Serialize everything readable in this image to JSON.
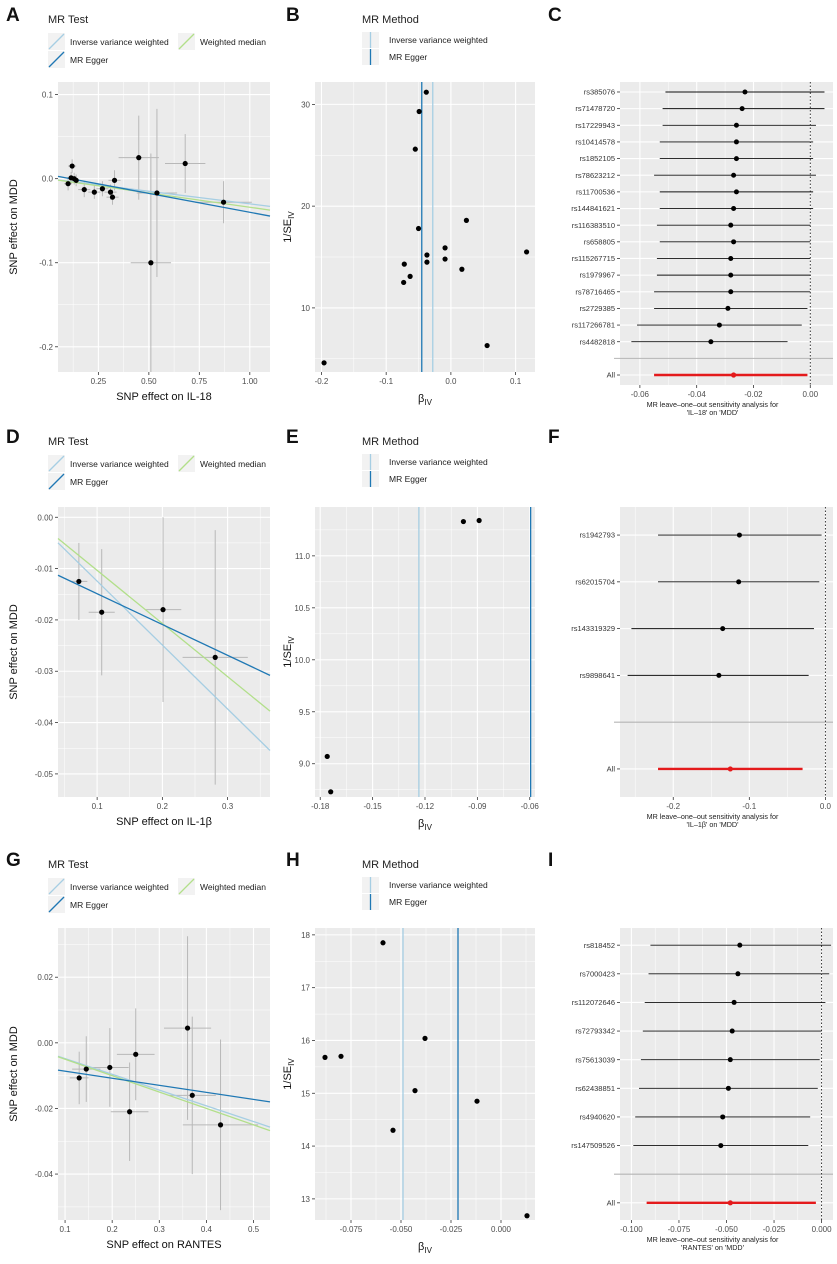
{
  "rows": [
    {
      "scatter": {
        "panel_label": "A",
        "legend_title": "MR Test",
        "legend_items": [
          "Inverse variance weighted",
          "Weighted median",
          "MR Egger"
        ],
        "xlabel": "SNP effect on IL-18",
        "ylabel": "SNP effect on MDD",
        "xlim": [
          0.05,
          1.1
        ],
        "ylim": [
          -0.23,
          0.115
        ],
        "xticks": [
          0.25,
          0.5,
          0.75,
          1.0
        ],
        "xtick_labels": [
          "0.25",
          "0.50",
          "0.75",
          "1.00"
        ],
        "yticks": [
          -0.2,
          -0.1,
          0.0,
          0.1
        ],
        "ytick_labels": [
          "-0.2",
          "-0.1",
          "0.0",
          "0.1"
        ],
        "points": [
          {
            "x": 0.1,
            "y": -0.006,
            "xe": 0.02,
            "ye": 0.008
          },
          {
            "x": 0.115,
            "y": 0.001,
            "xe": 0.02,
            "ye": 0.007
          },
          {
            "x": 0.12,
            "y": 0.015,
            "xe": 0.02,
            "ye": 0.008
          },
          {
            "x": 0.13,
            "y": 0.0,
            "xe": 0.02,
            "ye": 0.007
          },
          {
            "x": 0.14,
            "y": -0.002,
            "xe": 0.02,
            "ye": 0.007
          },
          {
            "x": 0.18,
            "y": -0.013,
            "xe": 0.03,
            "ye": 0.009
          },
          {
            "x": 0.23,
            "y": -0.016,
            "xe": 0.03,
            "ye": 0.008
          },
          {
            "x": 0.27,
            "y": -0.012,
            "xe": 0.03,
            "ye": 0.009
          },
          {
            "x": 0.31,
            "y": -0.016,
            "xe": 0.03,
            "ye": 0.009
          },
          {
            "x": 0.32,
            "y": -0.022,
            "xe": 0.03,
            "ye": 0.009
          },
          {
            "x": 0.33,
            "y": -0.002,
            "xe": 0.03,
            "ye": 0.012
          },
          {
            "x": 0.45,
            "y": 0.025,
            "xe": 0.1,
            "ye": 0.05
          },
          {
            "x": 0.51,
            "y": -0.1,
            "xe": 0.1,
            "ye": 0.13
          },
          {
            "x": 0.54,
            "y": -0.017,
            "xe": 0.1,
            "ye": 0.1
          },
          {
            "x": 0.68,
            "y": 0.018,
            "xe": 0.1,
            "ye": 0.035
          },
          {
            "x": 0.87,
            "y": -0.028,
            "xe": 0.14,
            "ye": 0.025
          }
        ],
        "lines": [
          {
            "name": "Inverse variance weighted",
            "slope": -0.03,
            "intercept": 0,
            "color": "#a6cee3"
          },
          {
            "name": "Weighted median",
            "slope": -0.034,
            "intercept": 0,
            "color": "#b2df8a"
          },
          {
            "name": "MR Egger",
            "slope": -0.045,
            "intercept": 0.005,
            "color": "#1f78b4"
          }
        ]
      },
      "funnel": {
        "panel_label": "B",
        "legend_title": "MR Method",
        "legend_items": [
          "Inverse variance weighted",
          "MR Egger"
        ],
        "xlabel": "βIV",
        "xlabel_main": "β",
        "xlabel_sub": "IV",
        "ylabel": "1/SEIV",
        "ylabel_main": "1/SE",
        "ylabel_sub": "IV",
        "xlim": [
          -0.21,
          0.13
        ],
        "ylim": [
          3.7,
          32.2
        ],
        "xticks": [
          -0.2,
          -0.1,
          0.0,
          0.1
        ],
        "xtick_labels": [
          "-0.2",
          "-0.1",
          "0.0",
          "0.1"
        ],
        "yticks": [
          10,
          20,
          30
        ],
        "ytick_labels": [
          "10",
          "20",
          "30"
        ],
        "points": [
          [
            -0.196,
            4.6
          ],
          [
            -0.073,
            12.5
          ],
          [
            -0.072,
            14.3
          ],
          [
            -0.063,
            13.1
          ],
          [
            -0.055,
            25.6
          ],
          [
            -0.05,
            17.8
          ],
          [
            -0.049,
            29.3
          ],
          [
            -0.037,
            14.5
          ],
          [
            -0.037,
            15.2
          ],
          [
            -0.038,
            31.2
          ],
          [
            -0.009,
            15.9
          ],
          [
            -0.009,
            14.8
          ],
          [
            0.017,
            13.8
          ],
          [
            0.024,
            18.6
          ],
          [
            0.056,
            6.3
          ],
          [
            0.117,
            15.5
          ]
        ],
        "ivw": -0.028,
        "egger": -0.045
      },
      "loo": {
        "panel_label": "C",
        "snps": [
          "rs385076",
          "rs71478720",
          "rs17229943",
          "rs10414578",
          "rs1852105",
          "rs78623212",
          "rs11700536",
          "rs144841621",
          "rs116383510",
          "rs658805",
          "rs115267715",
          "rs1979967",
          "rs78716465",
          "rs2729385",
          "rs117266781",
          "rs4482818"
        ],
        "est": [
          -0.023,
          -0.024,
          -0.026,
          -0.026,
          -0.026,
          -0.027,
          -0.026,
          -0.027,
          -0.028,
          -0.027,
          -0.028,
          -0.028,
          -0.028,
          -0.029,
          -0.032,
          -0.035
        ],
        "lo": [
          -0.051,
          -0.052,
          -0.052,
          -0.053,
          -0.053,
          -0.055,
          -0.053,
          -0.053,
          -0.054,
          -0.053,
          -0.054,
          -0.054,
          -0.055,
          -0.055,
          -0.061,
          -0.063
        ],
        "hi": [
          0.005,
          0.005,
          0.002,
          0.001,
          0.001,
          0.002,
          0.001,
          0.001,
          0.0,
          0.0,
          0.0,
          0.0,
          0.0,
          -0.001,
          -0.003,
          -0.008
        ],
        "all_label": "All",
        "all": {
          "est": -0.027,
          "lo": -0.055,
          "hi": -0.001
        },
        "xlim": [
          -0.067,
          0.008
        ],
        "xticks": [
          -0.06,
          -0.04,
          -0.02,
          0.0
        ],
        "xtick_labels": [
          "-0.06",
          "-0.04",
          "-0.02",
          "0.00"
        ],
        "caption1": "MR leave–one–out sensitivity analysis for",
        "caption2": "'IL–18' on 'MDD'"
      }
    },
    {
      "scatter": {
        "panel_label": "D",
        "legend_title": "MR Test",
        "legend_items": [
          "Inverse variance weighted",
          "Weighted median",
          "MR Egger"
        ],
        "xlabel": "SNP effect on IL-1β",
        "ylabel": "SNP effect on MDD",
        "xlim": [
          0.04,
          0.365
        ],
        "ylim": [
          -0.0545,
          0.002
        ],
        "xticks": [
          0.1,
          0.2,
          0.3
        ],
        "xtick_labels": [
          "0.1",
          "0.2",
          "0.3"
        ],
        "yticks": [
          -0.05,
          -0.04,
          -0.03,
          -0.02,
          -0.01,
          0.0
        ],
        "ytick_labels": [
          "-0.05",
          "-0.04",
          "-0.03",
          "-0.02",
          "-0.01",
          "0.00"
        ],
        "points": [
          {
            "x": 0.072,
            "y": -0.0125,
            "xe": 0.013,
            "ye": 0.0075
          },
          {
            "x": 0.107,
            "y": -0.0185,
            "xe": 0.02,
            "ye": 0.0123
          },
          {
            "x": 0.201,
            "y": -0.018,
            "xe": 0.028,
            "ye": 0.018
          },
          {
            "x": 0.281,
            "y": -0.0273,
            "xe": 0.05,
            "ye": 0.0248
          }
        ],
        "lines": [
          {
            "name": "Inverse variance weighted",
            "slope": -0.1245,
            "intercept": 0,
            "color": "#a6cee3"
          },
          {
            "name": "Weighted median",
            "slope": -0.1035,
            "intercept": 0,
            "color": "#b2df8a"
          },
          {
            "name": "MR Egger",
            "slope": -0.06,
            "intercept": -0.0089,
            "color": "#1f78b4"
          }
        ]
      },
      "funnel": {
        "panel_label": "E",
        "legend_title": "MR Method",
        "legend_items": [
          "Inverse variance weighted",
          "MR Egger"
        ],
        "xlabel": "βIV",
        "xlabel_main": "β",
        "xlabel_sub": "IV",
        "ylabel": "1/SEIV",
        "ylabel_main": "1/SE",
        "ylabel_sub": "IV",
        "xlim": [
          -0.183,
          -0.057
        ],
        "ylim": [
          8.68,
          11.47
        ],
        "xticks": [
          -0.18,
          -0.15,
          -0.12,
          -0.09,
          -0.06
        ],
        "xtick_labels": [
          "-0.18",
          "-0.15",
          "-0.12",
          "-0.09",
          "-0.06"
        ],
        "yticks": [
          9.0,
          9.5,
          10.0,
          10.5,
          11.0
        ],
        "ytick_labels": [
          "9.0",
          "9.5",
          "10.0",
          "10.5",
          "11.0"
        ],
        "points": [
          [
            -0.176,
            9.07
          ],
          [
            -0.174,
            8.73
          ],
          [
            -0.098,
            11.33
          ],
          [
            -0.089,
            11.34
          ]
        ],
        "ivw": -0.1235,
        "egger": -0.0595
      },
      "loo": {
        "panel_label": "F",
        "snps": [
          "rs1942793",
          "rs62015704",
          "rs143319329",
          "rs9898641"
        ],
        "est": [
          -0.113,
          -0.114,
          -0.135,
          -0.14
        ],
        "lo": [
          -0.22,
          -0.22,
          -0.255,
          -0.26
        ],
        "hi": [
          -0.005,
          -0.008,
          -0.015,
          -0.022
        ],
        "all_label": "All",
        "all": {
          "est": -0.125,
          "lo": -0.22,
          "hi": -0.03
        },
        "xlim": [
          -0.27,
          0.01
        ],
        "xticks": [
          -0.2,
          -0.1,
          0.0
        ],
        "xtick_labels": [
          "-0.2",
          "-0.1",
          "0.0"
        ],
        "caption1": "MR leave–one–out sensitivity analysis for",
        "caption2": "'IL–1β' on 'MDD'"
      }
    },
    {
      "scatter": {
        "panel_label": "G",
        "legend_title": "MR Test",
        "legend_items": [
          "Inverse variance weighted",
          "Weighted median",
          "MR Egger"
        ],
        "xlabel": "SNP effect on RANTES",
        "ylabel": "SNP effect on MDD",
        "xlim": [
          0.085,
          0.535
        ],
        "ylim": [
          -0.054,
          0.035
        ],
        "xticks": [
          0.1,
          0.2,
          0.3,
          0.4,
          0.5
        ],
        "xtick_labels": [
          "0.1",
          "0.2",
          "0.3",
          "0.4",
          "0.5"
        ],
        "yticks": [
          -0.04,
          -0.02,
          0.0,
          0.02
        ],
        "ytick_labels": [
          "-0.04",
          "-0.02",
          "0.00",
          "0.02"
        ],
        "points": [
          {
            "x": 0.13,
            "y": -0.0107,
            "xe": 0.02,
            "ye": 0.008
          },
          {
            "x": 0.145,
            "y": -0.008,
            "xe": 0.03,
            "ye": 0.01
          },
          {
            "x": 0.195,
            "y": -0.0075,
            "xe": 0.04,
            "ye": 0.012
          },
          {
            "x": 0.237,
            "y": -0.021,
            "xe": 0.04,
            "ye": 0.015
          },
          {
            "x": 0.25,
            "y": -0.0035,
            "xe": 0.04,
            "ye": 0.014
          },
          {
            "x": 0.36,
            "y": 0.0045,
            "xe": 0.05,
            "ye": 0.028
          },
          {
            "x": 0.37,
            "y": -0.016,
            "xe": 0.05,
            "ye": 0.024
          },
          {
            "x": 0.43,
            "y": -0.025,
            "xe": 0.08,
            "ye": 0.026
          }
        ],
        "lines": [
          {
            "name": "Inverse variance weighted",
            "slope": -0.048,
            "intercept": 0,
            "color": "#a6cee3"
          },
          {
            "name": "Weighted median",
            "slope": -0.05,
            "intercept": 0,
            "color": "#b2df8a"
          },
          {
            "name": "MR Egger",
            "slope": -0.0215,
            "intercept": -0.0065,
            "color": "#1f78b4"
          }
        ]
      },
      "funnel": {
        "panel_label": "H",
        "legend_title": "MR Method",
        "legend_items": [
          "Inverse variance weighted",
          "MR Egger"
        ],
        "xlabel": "βIV",
        "xlabel_main": "β",
        "xlabel_sub": "IV",
        "ylabel": "1/SEIV",
        "ylabel_main": "1/SE",
        "ylabel_sub": "IV",
        "xlim": [
          -0.093,
          0.017
        ],
        "ylim": [
          12.6,
          18.13
        ],
        "xticks": [
          -0.075,
          -0.05,
          -0.025,
          0.0
        ],
        "xtick_labels": [
          "-0.075",
          "-0.050",
          "-0.025",
          "0.000"
        ],
        "yticks": [
          13,
          14,
          15,
          16,
          17,
          18
        ],
        "ytick_labels": [
          "13",
          "14",
          "15",
          "16",
          "17",
          "18"
        ],
        "points": [
          [
            -0.088,
            15.68
          ],
          [
            -0.08,
            15.7
          ],
          [
            -0.059,
            17.85
          ],
          [
            -0.054,
            14.3
          ],
          [
            -0.043,
            15.05
          ],
          [
            -0.038,
            16.04
          ],
          [
            -0.012,
            14.85
          ],
          [
            0.013,
            12.68
          ]
        ],
        "ivw": -0.049,
        "egger": -0.0215
      },
      "loo": {
        "panel_label": "I",
        "snps": [
          "rs818452",
          "rs7000423",
          "rs112072646",
          "rs72793342",
          "rs75613039",
          "rs62438851",
          "rs4940620",
          "rs147509526"
        ],
        "est": [
          -0.043,
          -0.044,
          -0.046,
          -0.047,
          -0.048,
          -0.049,
          -0.052,
          -0.053
        ],
        "lo": [
          -0.09,
          -0.091,
          -0.093,
          -0.094,
          -0.095,
          -0.096,
          -0.098,
          -0.099
        ],
        "hi": [
          0.005,
          0.004,
          0.002,
          0.0,
          -0.001,
          -0.002,
          -0.006,
          -0.007
        ],
        "all_label": "All",
        "all": {
          "est": -0.048,
          "lo": -0.092,
          "hi": -0.003
        },
        "xlim": [
          -0.106,
          0.006
        ],
        "xticks": [
          -0.1,
          -0.075,
          -0.05,
          -0.025,
          0.0
        ],
        "xtick_labels": [
          "-0.100",
          "-0.075",
          "-0.050",
          "-0.025",
          "0.000"
        ],
        "caption1": "MR leave–one–out sensitivity analysis for",
        "caption2": "'RANTES' on 'MDD'"
      }
    }
  ]
}
